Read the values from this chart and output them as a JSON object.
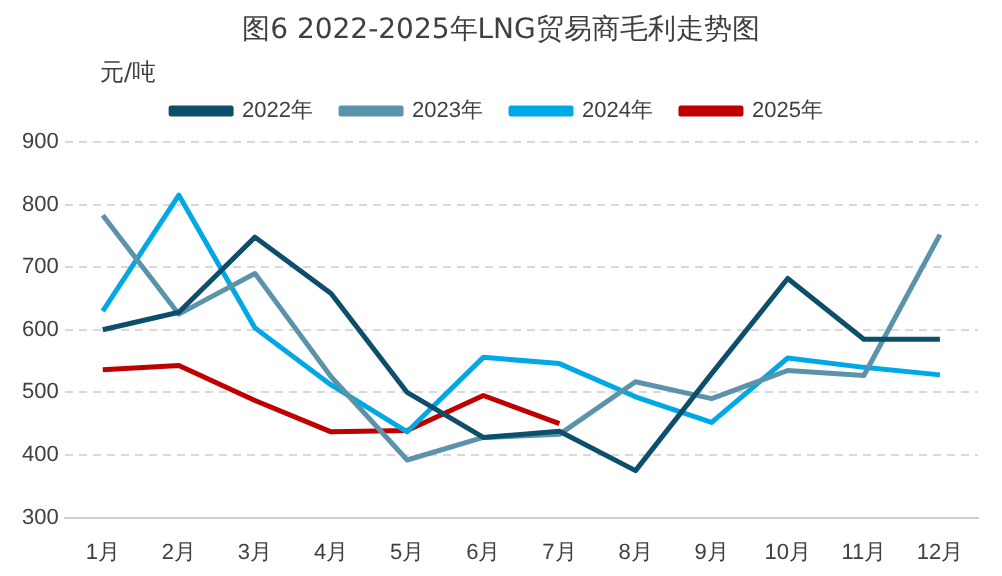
{
  "chart_data": {
    "type": "line",
    "title": "图6 2022-2025年LNG贸易商毛利走势图",
    "ylabel": "元/吨",
    "categories": [
      "1月",
      "2月",
      "3月",
      "4月",
      "5月",
      "6月",
      "7月",
      "8月",
      "9月",
      "10月",
      "11月",
      "12月"
    ],
    "series": [
      {
        "name": "2022年",
        "color": "#0d4f6b",
        "values": [
          600,
          628,
          748,
          658,
          500,
          428,
          438,
          375,
          530,
          682,
          585,
          585
        ]
      },
      {
        "name": "2023年",
        "color": "#5b93ab",
        "values": [
          783,
          625,
          690,
          525,
          392,
          428,
          433,
          517,
          490,
          535,
          527,
          752
        ]
      },
      {
        "name": "2024年",
        "color": "#00a9e6",
        "values": [
          630,
          815,
          603,
          512,
          437,
          556,
          546,
          493,
          452,
          555,
          540,
          528
        ]
      },
      {
        "name": "2025年",
        "color": "#c00000",
        "values": [
          536,
          543,
          487,
          437,
          439,
          495,
          450,
          null,
          null,
          null,
          null,
          null
        ]
      }
    ],
    "ylim": [
      300,
      900
    ],
    "yticks": [
      300,
      400,
      500,
      600,
      700,
      800,
      900
    ],
    "grid": "y",
    "legend": "top",
    "marker": "none",
    "line_style": "solid"
  }
}
